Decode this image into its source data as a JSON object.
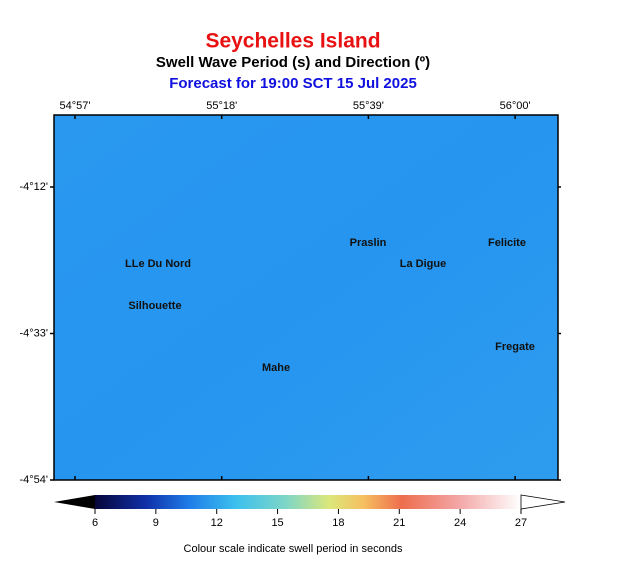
{
  "header": {
    "title": "Seychelles Island",
    "subtitle": "Swell Wave Period (s) and Direction (º)",
    "forecast": "Forecast for  19:00 SCT 15 Jul 2025"
  },
  "map": {
    "lon_labels": [
      "54°57'",
      "55°18'",
      "55°39'",
      "56°00'"
    ],
    "lat_labels": [
      "-4°12'",
      "-4°33'",
      "-4°54'"
    ]
  },
  "places": [
    "LLe Du Nord",
    "Silhouette",
    "Praslin",
    "La Digue",
    "Felicite",
    "Fregate",
    "Mahe"
  ],
  "colorbar": {
    "ticks": [
      6,
      9,
      12,
      15,
      18,
      21,
      24,
      27
    ],
    "caption": "Colour scale indicate swell period in seconds"
  }
}
